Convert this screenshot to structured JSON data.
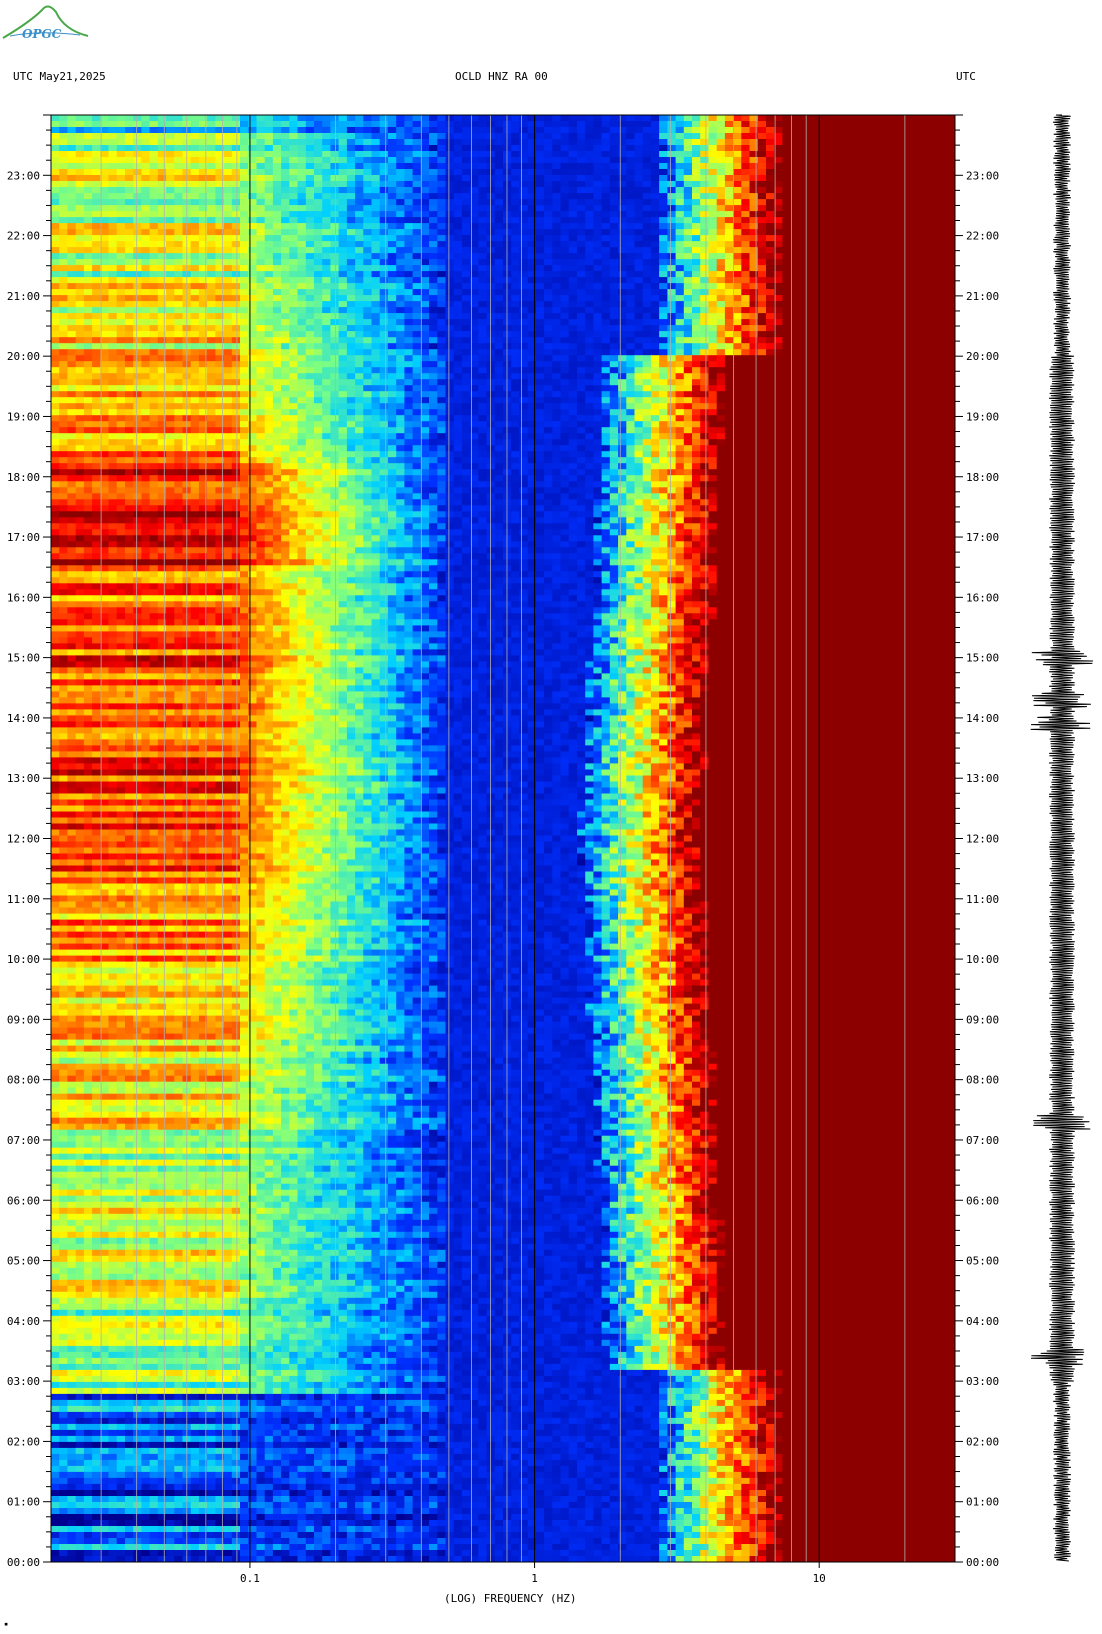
{
  "header": {
    "left": "UTC  May21,2025",
    "center": "OCLD HNZ RA 00",
    "right": "UTC"
  },
  "logo": {
    "text": "OPGC"
  },
  "chart_data": {
    "type": "heatmap",
    "title": "OCLD HNZ RA 00",
    "date": "May21,2025",
    "xlabel": "(LOG) FREQUENCY (HZ)",
    "x_scale": "log",
    "xlim": [
      0.02,
      30
    ],
    "x_ticks": [
      {
        "value": 0.1,
        "label": "0.1"
      },
      {
        "value": 1,
        "label": "1"
      },
      {
        "value": 10,
        "label": "10"
      }
    ],
    "y_axis_label": "UTC",
    "y_ticks": [
      "00:00",
      "01:00",
      "02:00",
      "03:00",
      "04:00",
      "05:00",
      "06:00",
      "07:00",
      "08:00",
      "09:00",
      "10:00",
      "11:00",
      "12:00",
      "13:00",
      "14:00",
      "15:00",
      "16:00",
      "17:00",
      "18:00",
      "19:00",
      "20:00",
      "21:00",
      "22:00",
      "23:00"
    ],
    "ylim_hours": [
      0,
      24
    ],
    "colormap": [
      "#00008f",
      "#0030ff",
      "#00d0ff",
      "#7fff7f",
      "#ffff00",
      "#ff8000",
      "#ff0000",
      "#8b0000"
    ],
    "gridlines_hz": [
      0.03,
      0.04,
      0.05,
      0.06,
      0.07,
      0.08,
      0.09,
      0.1,
      0.2,
      0.3,
      0.4,
      0.5,
      0.6,
      0.7,
      0.8,
      0.9,
      1,
      2,
      3,
      4,
      5,
      6,
      7,
      8,
      9,
      10,
      20
    ],
    "trace_events_utc_hours": [
      3.4,
      7.3,
      13.9,
      14.3,
      15.0
    ]
  }
}
